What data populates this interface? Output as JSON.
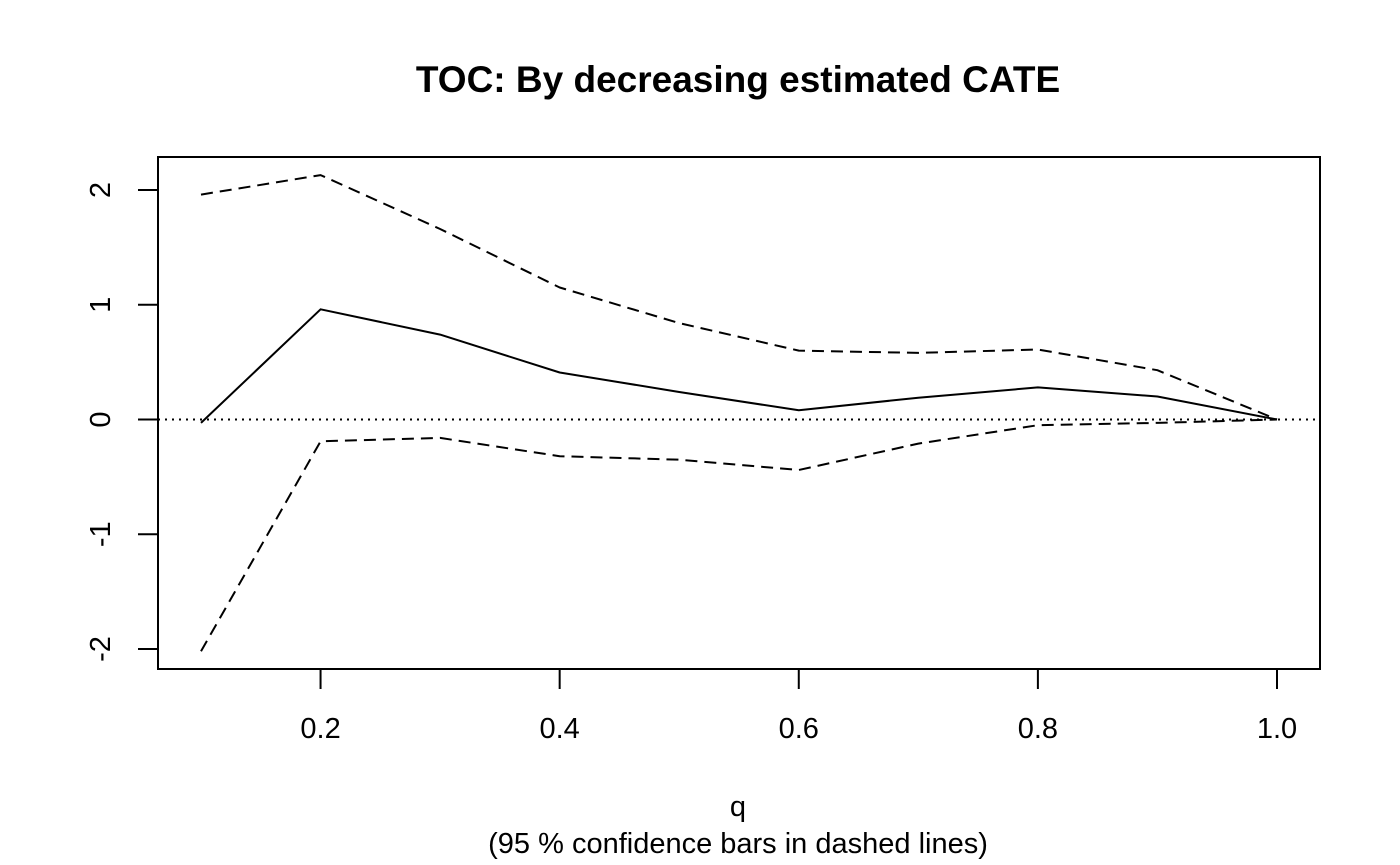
{
  "chart_data": {
    "type": "line",
    "title": "TOC: By decreasing estimated CATE",
    "xlabel": "q",
    "subtitle": "(95 % confidence bars in dashed lines)",
    "ylabel": "",
    "xlim": [
      0.1,
      1.0
    ],
    "ylim": [
      -2.0,
      2.1
    ],
    "x_ticks": [
      "0.2",
      "0.4",
      "0.6",
      "0.8",
      "1.0"
    ],
    "y_ticks": [
      "-2",
      "-1",
      "0",
      "1",
      "2"
    ],
    "grid": false,
    "reference_line": {
      "y": 0,
      "style": "dotted"
    },
    "x": [
      0.1,
      0.2,
      0.3,
      0.4,
      0.5,
      0.6,
      0.7,
      0.8,
      0.9,
      1.0
    ],
    "series": [
      {
        "style": "solid",
        "values": [
          -0.03,
          0.96,
          0.74,
          0.41,
          0.24,
          0.08,
          0.19,
          0.28,
          0.2,
          0.0
        ]
      },
      {
        "style": "dashed",
        "values": [
          1.96,
          2.13,
          1.66,
          1.15,
          0.84,
          0.6,
          0.58,
          0.61,
          0.43,
          0.0
        ]
      },
      {
        "style": "dashed",
        "values": [
          -2.02,
          -0.19,
          -0.16,
          -0.32,
          -0.35,
          -0.44,
          -0.21,
          -0.05,
          -0.03,
          0.0
        ]
      }
    ]
  }
}
